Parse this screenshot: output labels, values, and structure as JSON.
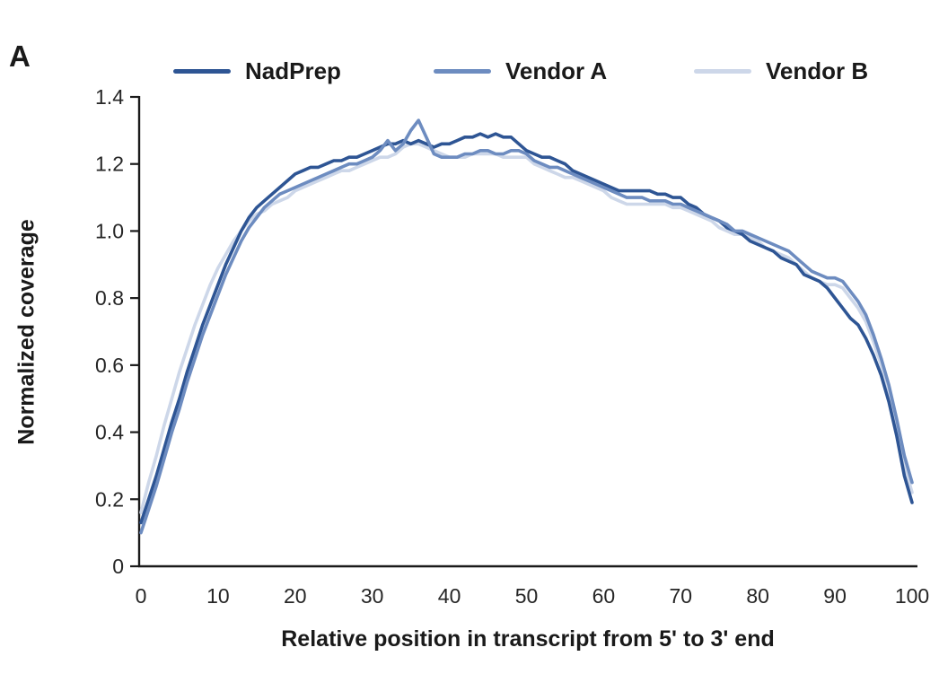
{
  "panel_label": "A",
  "chart_data": {
    "type": "line",
    "title": "",
    "xlabel": "Relative position in transcript from 5' to 3' end",
    "ylabel": "Normalized coverage",
    "xlim": [
      0,
      100
    ],
    "ylim": [
      0,
      1.4
    ],
    "xticks": [
      "0",
      "10",
      "20",
      "30",
      "40",
      "50",
      "60",
      "70",
      "80",
      "90",
      "100"
    ],
    "yticks": [
      "0",
      "0.2",
      "0.4",
      "0.6",
      "0.8",
      "1.0",
      "1.2",
      "1.4"
    ],
    "grid": false,
    "legend_position": "top",
    "axis_color": "#1a1a1a",
    "tick_label_color": "#262626",
    "x": [
      0,
      1,
      2,
      3,
      4,
      5,
      6,
      7,
      8,
      9,
      10,
      11,
      12,
      13,
      14,
      15,
      16,
      17,
      18,
      19,
      20,
      21,
      22,
      23,
      24,
      25,
      26,
      27,
      28,
      29,
      30,
      31,
      32,
      33,
      34,
      35,
      36,
      37,
      38,
      39,
      40,
      41,
      42,
      43,
      44,
      45,
      46,
      47,
      48,
      49,
      50,
      51,
      52,
      53,
      54,
      55,
      56,
      57,
      58,
      59,
      60,
      61,
      62,
      63,
      64,
      65,
      66,
      67,
      68,
      69,
      70,
      71,
      72,
      73,
      74,
      75,
      76,
      77,
      78,
      79,
      80,
      81,
      82,
      83,
      84,
      85,
      86,
      87,
      88,
      89,
      90,
      91,
      92,
      93,
      94,
      95,
      96,
      97,
      98,
      99,
      100
    ],
    "series": [
      {
        "name": "NadPrep",
        "color": "#2E5594",
        "values": [
          0.13,
          0.2,
          0.27,
          0.35,
          0.43,
          0.5,
          0.58,
          0.65,
          0.72,
          0.78,
          0.84,
          0.9,
          0.95,
          1.0,
          1.04,
          1.07,
          1.09,
          1.11,
          1.13,
          1.15,
          1.17,
          1.18,
          1.19,
          1.19,
          1.2,
          1.21,
          1.21,
          1.22,
          1.22,
          1.23,
          1.24,
          1.25,
          1.26,
          1.26,
          1.27,
          1.26,
          1.27,
          1.26,
          1.25,
          1.26,
          1.26,
          1.27,
          1.28,
          1.28,
          1.29,
          1.28,
          1.29,
          1.28,
          1.28,
          1.26,
          1.24,
          1.23,
          1.22,
          1.22,
          1.21,
          1.2,
          1.18,
          1.17,
          1.16,
          1.15,
          1.14,
          1.13,
          1.12,
          1.12,
          1.12,
          1.12,
          1.12,
          1.11,
          1.11,
          1.1,
          1.1,
          1.08,
          1.07,
          1.05,
          1.04,
          1.03,
          1.01,
          1.0,
          0.99,
          0.97,
          0.96,
          0.95,
          0.94,
          0.92,
          0.91,
          0.9,
          0.87,
          0.86,
          0.85,
          0.83,
          0.8,
          0.77,
          0.74,
          0.72,
          0.68,
          0.63,
          0.57,
          0.49,
          0.39,
          0.27,
          0.19
        ]
      },
      {
        "name": "Vendor A",
        "color": "#6D8CC0",
        "values": [
          0.1,
          0.17,
          0.24,
          0.32,
          0.4,
          0.47,
          0.55,
          0.62,
          0.69,
          0.75,
          0.81,
          0.87,
          0.92,
          0.97,
          1.01,
          1.04,
          1.07,
          1.09,
          1.11,
          1.12,
          1.13,
          1.14,
          1.15,
          1.16,
          1.17,
          1.18,
          1.19,
          1.2,
          1.2,
          1.21,
          1.22,
          1.24,
          1.27,
          1.24,
          1.26,
          1.3,
          1.33,
          1.28,
          1.23,
          1.22,
          1.22,
          1.22,
          1.23,
          1.23,
          1.24,
          1.24,
          1.23,
          1.23,
          1.24,
          1.24,
          1.23,
          1.21,
          1.2,
          1.19,
          1.19,
          1.18,
          1.17,
          1.16,
          1.15,
          1.14,
          1.13,
          1.12,
          1.11,
          1.1,
          1.1,
          1.1,
          1.09,
          1.09,
          1.09,
          1.08,
          1.08,
          1.07,
          1.06,
          1.05,
          1.04,
          1.03,
          1.02,
          1.0,
          1.0,
          0.99,
          0.98,
          0.97,
          0.96,
          0.95,
          0.94,
          0.92,
          0.9,
          0.88,
          0.87,
          0.86,
          0.86,
          0.85,
          0.82,
          0.79,
          0.75,
          0.69,
          0.62,
          0.54,
          0.44,
          0.33,
          0.25
        ]
      },
      {
        "name": "Vendor B",
        "color": "#CDD7E9",
        "values": [
          0.16,
          0.25,
          0.33,
          0.42,
          0.5,
          0.58,
          0.65,
          0.72,
          0.78,
          0.84,
          0.89,
          0.93,
          0.97,
          1.0,
          1.03,
          1.05,
          1.06,
          1.08,
          1.09,
          1.1,
          1.12,
          1.13,
          1.14,
          1.15,
          1.16,
          1.17,
          1.18,
          1.18,
          1.19,
          1.2,
          1.21,
          1.22,
          1.22,
          1.23,
          1.25,
          1.26,
          1.26,
          1.25,
          1.24,
          1.23,
          1.22,
          1.22,
          1.22,
          1.23,
          1.23,
          1.23,
          1.23,
          1.22,
          1.22,
          1.22,
          1.22,
          1.2,
          1.19,
          1.18,
          1.17,
          1.16,
          1.16,
          1.15,
          1.14,
          1.13,
          1.12,
          1.1,
          1.09,
          1.08,
          1.08,
          1.08,
          1.08,
          1.08,
          1.08,
          1.07,
          1.07,
          1.06,
          1.05,
          1.04,
          1.03,
          1.01,
          1.0,
          0.99,
          0.99,
          0.98,
          0.97,
          0.95,
          0.94,
          0.93,
          0.92,
          0.9,
          0.88,
          0.86,
          0.85,
          0.84,
          0.84,
          0.83,
          0.8,
          0.77,
          0.73,
          0.67,
          0.6,
          0.51,
          0.41,
          0.3,
          0.22
        ]
      }
    ],
    "draw_order": [
      2,
      0,
      1
    ]
  }
}
